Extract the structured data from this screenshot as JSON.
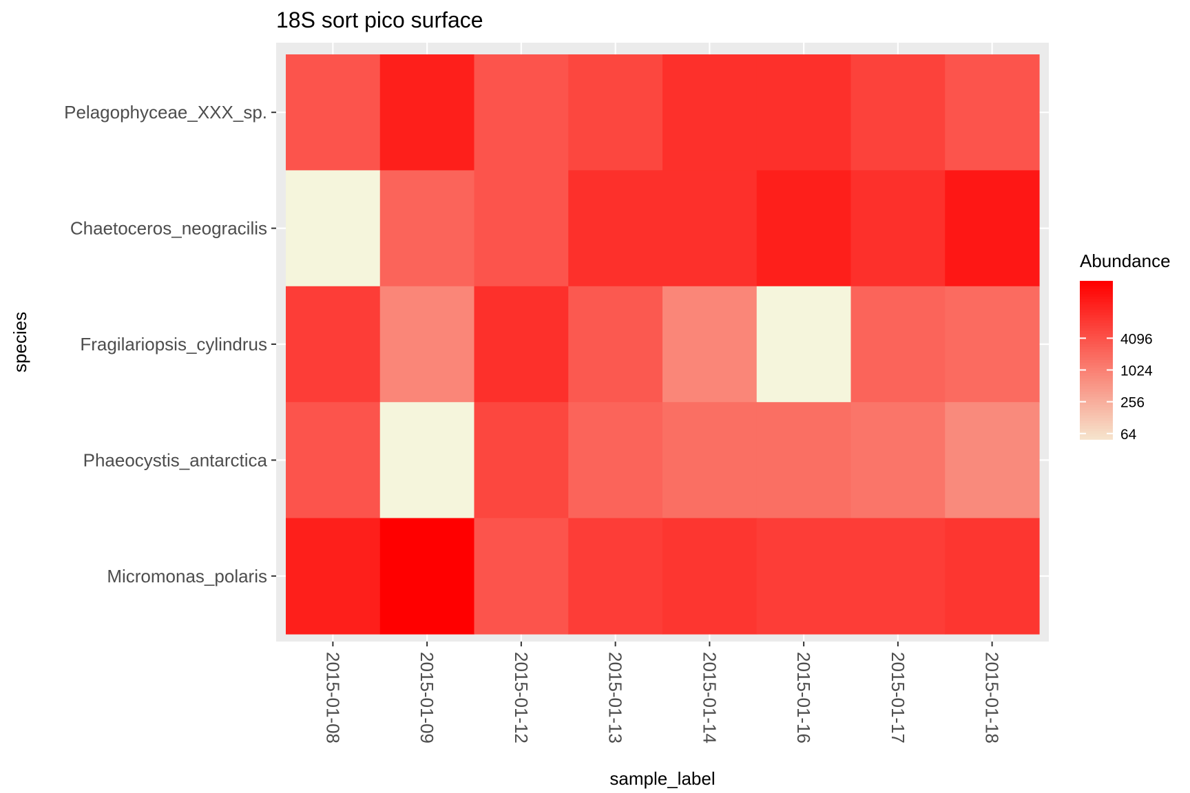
{
  "chart_data": {
    "type": "heatmap",
    "title": "18S sort pico surface",
    "xlabel": "sample_label",
    "ylabel": "species",
    "x_categories": [
      "2015-01-08",
      "2015-01-09",
      "2015-01-12",
      "2015-01-13",
      "2015-01-14",
      "2015-01-16",
      "2015-01-17",
      "2015-01-18"
    ],
    "y_categories": [
      "Pelagophyceae_XXX_sp.",
      "Chaetoceros_neogracilis",
      "Fragilariopsis_cylindrus",
      "Phaeocystis_antarctica",
      "Micromonas_polaris"
    ],
    "values": [
      [
        4000,
        20000,
        4000,
        6000,
        12000,
        12000,
        7000,
        4000
      ],
      [
        null,
        2500,
        4000,
        12000,
        12000,
        20000,
        12000,
        25000
      ],
      [
        8000,
        900,
        12000,
        3500,
        900,
        null,
        2500,
        2000
      ],
      [
        4000,
        null,
        6000,
        2500,
        1800,
        1800,
        1500,
        800
      ],
      [
        20000,
        50000,
        4000,
        8000,
        10000,
        8000,
        8000,
        10000
      ]
    ],
    "color_scale": {
      "trans": "log2",
      "low": "#f5f5dc",
      "high": "#ff0000",
      "range": [
        32,
        50000
      ],
      "na_color": "#f5f5dc"
    },
    "legend": {
      "title": "Abundance",
      "position": "right",
      "breaks": [
        4096,
        1024,
        256,
        64
      ],
      "labels": [
        "4096",
        "1024",
        "256",
        "64"
      ]
    },
    "grid": true
  }
}
